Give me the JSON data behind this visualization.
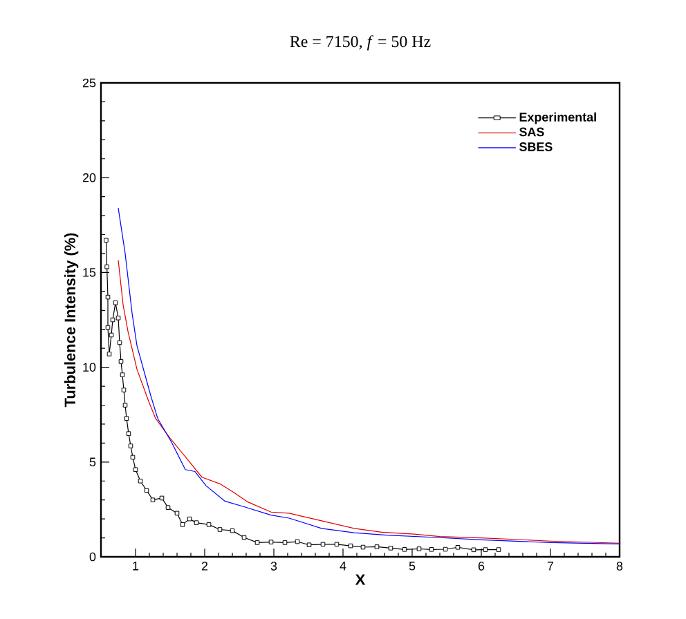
{
  "chart_data": {
    "type": "line",
    "title": "Re = 7150, *f* = 50 Hz",
    "xlabel": "X",
    "ylabel": "Turbulence Intensity (%)",
    "xlim": [
      0.5,
      8
    ],
    "ylim": [
      0,
      25
    ],
    "xticks": [
      1,
      2,
      3,
      4,
      5,
      6,
      7,
      8
    ],
    "yticks": [
      0,
      5,
      10,
      15,
      20,
      25
    ],
    "legend": "top right",
    "series": [
      {
        "name": "Experimental",
        "color": "#000000",
        "marker": "square",
        "x": [
          0.574,
          0.586,
          0.6,
          0.6,
          0.62,
          0.65,
          0.67,
          0.71,
          0.75,
          0.77,
          0.79,
          0.81,
          0.83,
          0.85,
          0.87,
          0.9,
          0.93,
          0.96,
          1.0,
          1.07,
          1.16,
          1.25,
          1.38,
          1.47,
          1.6,
          1.68,
          1.78,
          1.88,
          2.06,
          2.22,
          2.4,
          2.57,
          2.76,
          2.96,
          3.16,
          3.34,
          3.51,
          3.71,
          3.91,
          4.11,
          4.29,
          4.49,
          4.69,
          4.89,
          5.1,
          5.28,
          5.48,
          5.66,
          5.89,
          6.06,
          6.25
        ],
        "values": [
          16.7,
          15.3,
          13.7,
          12.1,
          10.7,
          11.7,
          12.5,
          13.4,
          12.6,
          11.3,
          10.3,
          9.6,
          8.8,
          8.0,
          7.3,
          6.5,
          5.85,
          5.25,
          4.6,
          4.0,
          3.5,
          3.0,
          3.1,
          2.6,
          2.3,
          1.7,
          2.0,
          1.8,
          1.7,
          1.44,
          1.38,
          1.02,
          0.75,
          0.78,
          0.75,
          0.8,
          0.63,
          0.66,
          0.66,
          0.58,
          0.51,
          0.53,
          0.46,
          0.39,
          0.42,
          0.39,
          0.4,
          0.5,
          0.37,
          0.38,
          0.38
        ]
      },
      {
        "name": "SAS",
        "color": "#e00000",
        "x": [
          0.75,
          0.82,
          0.89,
          1.02,
          1.19,
          1.29,
          1.49,
          1.76,
          1.96,
          2.22,
          2.42,
          2.62,
          2.96,
          3.22,
          3.69,
          4.16,
          4.56,
          5.03,
          5.4,
          6.0,
          7.0,
          8.0
        ],
        "values": [
          15.65,
          13.3,
          11.9,
          9.9,
          8.2,
          7.3,
          6.3,
          5.1,
          4.2,
          3.85,
          3.4,
          2.9,
          2.36,
          2.3,
          1.9,
          1.5,
          1.3,
          1.2,
          1.07,
          1.0,
          0.83,
          0.72
        ]
      },
      {
        "name": "SBES",
        "color": "#0000ff",
        "x": [
          0.75,
          0.85,
          0.95,
          1.02,
          1.22,
          1.32,
          1.52,
          1.72,
          1.86,
          2.02,
          2.29,
          2.56,
          2.96,
          3.22,
          3.69,
          4.16,
          4.63,
          5.36,
          6.0,
          7.0,
          8.0
        ],
        "values": [
          18.4,
          16.0,
          12.85,
          11.15,
          8.5,
          7.3,
          6.05,
          4.6,
          4.5,
          3.75,
          2.94,
          2.65,
          2.2,
          2.04,
          1.5,
          1.27,
          1.14,
          1.02,
          0.9,
          0.75,
          0.68
        ]
      }
    ]
  }
}
